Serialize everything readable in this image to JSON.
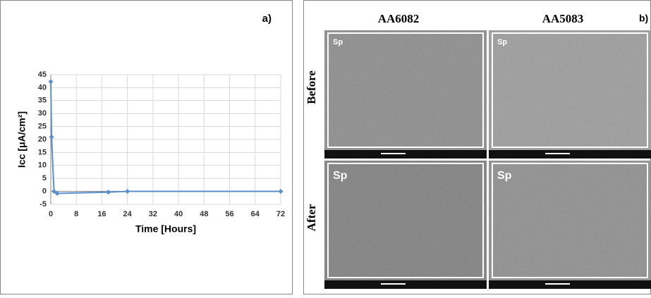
{
  "chart_data": {
    "type": "line",
    "x_label": "Time [Hours]",
    "y_label": "Icc [μA/cm²]",
    "x": [
      0,
      0.25,
      1,
      2,
      18,
      24,
      72
    ],
    "values": [
      42.3,
      21,
      0,
      -0.8,
      -0.3,
      0,
      0
    ],
    "color": "#5b8fc9",
    "xlim": [
      0,
      72
    ],
    "xticks": [
      0,
      8,
      16,
      24,
      32,
      40,
      48,
      56,
      64,
      72
    ],
    "ylim": [
      -5,
      45
    ],
    "yticks": [
      -5,
      0,
      5,
      10,
      15,
      20,
      25,
      30,
      35,
      40,
      45
    ],
    "grid": true
  },
  "panel_a_label": "a)",
  "panel_b": {
    "label": "b)",
    "columns": [
      "AA6082",
      "AA5083"
    ],
    "rows": [
      "Before",
      "After"
    ],
    "image_labels": [
      "Sp",
      "Sp",
      "Sp",
      "Sp"
    ]
  }
}
